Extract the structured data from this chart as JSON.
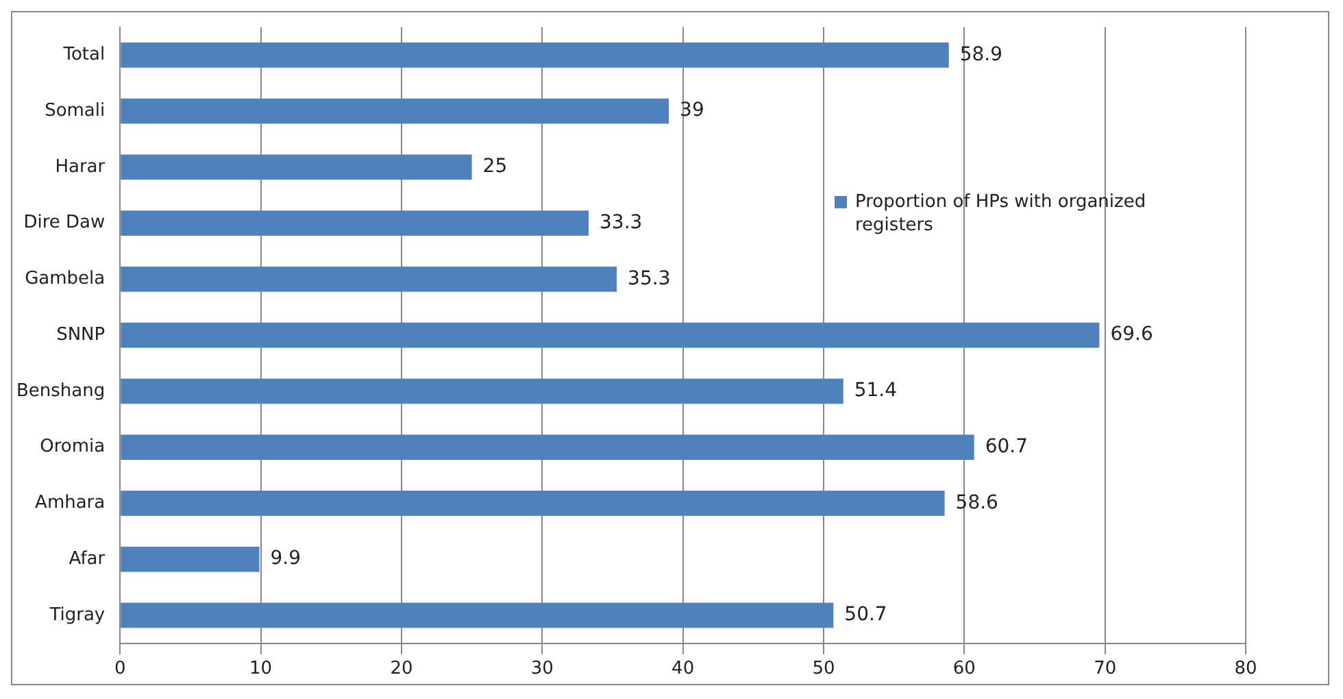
{
  "chart_data": {
    "type": "bar",
    "orientation": "horizontal",
    "categories": [
      "Total",
      "Somali",
      "Harar",
      "Dire Daw",
      "Gambela",
      "SNNP",
      "Benshang",
      "Oromia",
      "Amhara",
      "Afar",
      "Tigray"
    ],
    "series": [
      {
        "name": "Proportion of HPs with organized registers",
        "color": "#4f81bd",
        "values": [
          58.9,
          39,
          25,
          33.3,
          35.3,
          69.6,
          51.4,
          60.7,
          58.6,
          9.9,
          50.7
        ]
      }
    ],
    "xlim": [
      0,
      80
    ],
    "xticks": [
      0,
      10,
      20,
      30,
      40,
      50,
      60,
      70,
      80
    ],
    "grid": "x",
    "legend": "top right",
    "data_labels": true
  }
}
